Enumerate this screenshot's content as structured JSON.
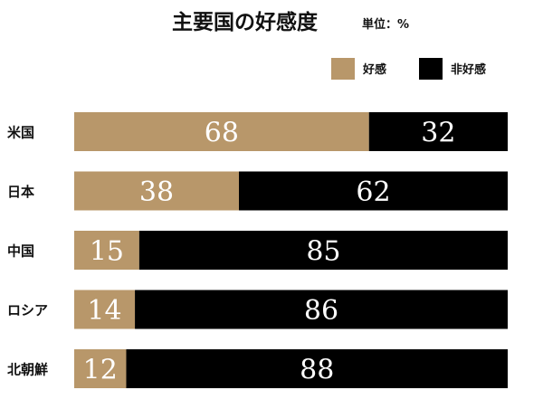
{
  "chart_data": {
    "type": "bar",
    "orientation": "horizontal",
    "stacked": true,
    "title": "主要国の好感度",
    "unit_label": "単位：%",
    "categories": [
      "米国",
      "日本",
      "中国",
      "ロシア",
      "北朝鮮"
    ],
    "series": [
      {
        "name": "好感",
        "color": "#b8976a",
        "values": [
          68,
          38,
          15,
          14,
          12
        ]
      },
      {
        "name": "非好感",
        "color": "#000000",
        "values": [
          32,
          62,
          85,
          86,
          88
        ]
      }
    ],
    "xlim": [
      0,
      100
    ],
    "grid": false,
    "legend_position": "top-right"
  }
}
